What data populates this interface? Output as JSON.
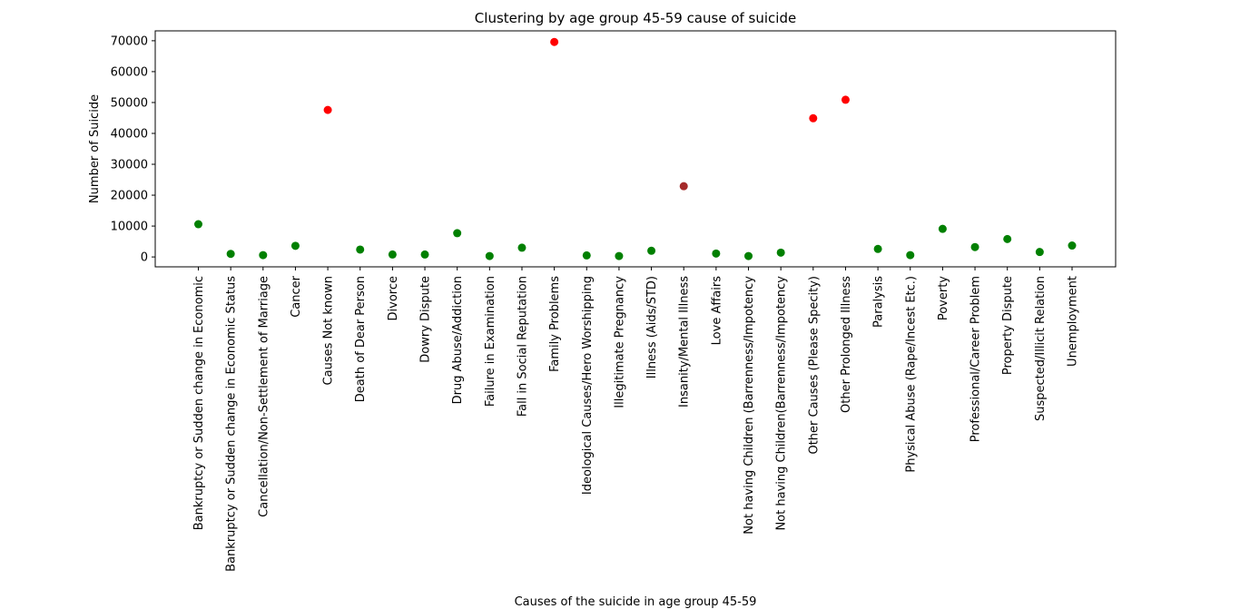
{
  "chart_data": {
    "type": "scatter",
    "title": "Clustering by age group 45-59 cause of  suicide",
    "xlabel": "Causes of the suicide in age group 45-59",
    "ylabel": "Number of Suicide",
    "ylim": [
      -3200,
      73200
    ],
    "yticks": [
      0,
      10000,
      20000,
      30000,
      40000,
      50000,
      60000,
      70000
    ],
    "grid": false,
    "categories": [
      "Bankruptcy or Sudden change in Economic",
      "Bankruptcy or Sudden change in Economic Status",
      "Cancellation/Non-Settlement of Marriage",
      "Cancer",
      "Causes Not known",
      "Death of Dear Person",
      "Divorce",
      "Dowry Dispute",
      "Drug Abuse/Addiction",
      "Failure in Examination",
      "Fall in Social Reputation",
      "Family Problems",
      "Ideological Causes/Hero Worshipping",
      "Illegitimate Pregnancy",
      "Illness (Aids/STD)",
      "Insanity/Mental Illness",
      "Love Affairs",
      "Not having Children (Barrenness/Impotency",
      "Not having Children(Barrenness/Impotency",
      "Other Causes (Please Specity)",
      "Other Prolonged Illness",
      "Paralysis",
      "Physical Abuse (Rape/Incest Etc.)",
      "Poverty",
      "Professional/Career Problem",
      "Property Dispute",
      "Suspected/Illicit Relation",
      "Unemployment"
    ],
    "values": [
      10600,
      1000,
      600,
      3600,
      47600,
      2400,
      800,
      800,
      7700,
      300,
      3000,
      69600,
      500,
      300,
      2000,
      22900,
      1100,
      300,
      1400,
      44900,
      50900,
      2600,
      600,
      9100,
      3200,
      5800,
      1600,
      3700
    ],
    "clusters": [
      0,
      0,
      0,
      0,
      1,
      0,
      0,
      0,
      0,
      0,
      0,
      1,
      0,
      0,
      0,
      2,
      0,
      0,
      0,
      1,
      1,
      0,
      0,
      0,
      0,
      0,
      0,
      0
    ],
    "cluster_colors": [
      "#008000",
      "#ff0000",
      "#a52a2a"
    ]
  }
}
